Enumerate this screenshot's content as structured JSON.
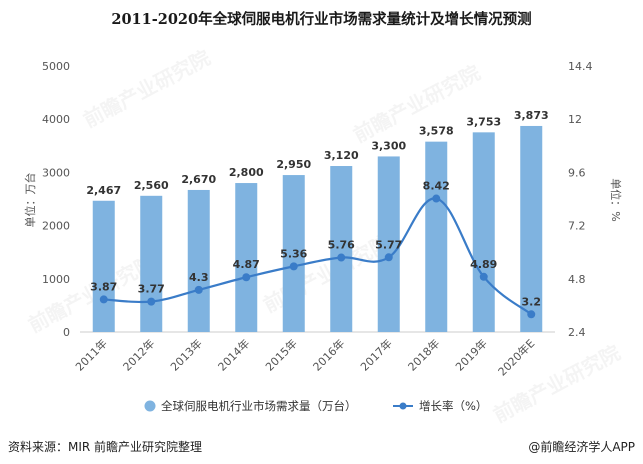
{
  "title": "2011-2020年全球伺服电机行业市场需求量统计及增长情况预测",
  "source": "资料来源：MIR 前瞻产业研究院整理",
  "brand": "@前瞻经济学人APP",
  "watermark": "前瞻产业研究院",
  "colors": {
    "bar": "#7fb3e0",
    "line": "#3a7cc8"
  },
  "chart_data": {
    "type": "bar",
    "categories": [
      "2011年",
      "2012年",
      "2013年",
      "2014年",
      "2015年",
      "2016年",
      "2017年",
      "2018年",
      "2019年",
      "2020年E"
    ],
    "series": [
      {
        "name": "全球伺服电机行业市场需求量（万台）",
        "type": "bar",
        "axis": "left",
        "values": [
          2467,
          2560,
          2670,
          2800,
          2950,
          3120,
          3300,
          3578,
          3753,
          3873
        ],
        "labels": [
          "2,467",
          "2,560",
          "2,670",
          "2,800",
          "2,950",
          "3,120",
          "3,300",
          "3,578",
          "3,753",
          "3,873"
        ]
      },
      {
        "name": "增长率（%）",
        "type": "line",
        "axis": "right",
        "values": [
          3.87,
          3.77,
          4.3,
          4.87,
          5.36,
          5.76,
          5.77,
          8.42,
          4.89,
          3.2
        ],
        "labels": [
          "3.87",
          "3.77",
          "4.3",
          "4.87",
          "5.36",
          "5.76",
          "5.77",
          "8.42",
          "4.89",
          "3.2"
        ]
      }
    ],
    "y_left": {
      "label": "单位：万台",
      "ylim": [
        0,
        5000
      ],
      "ticks": [
        0,
        1000,
        2000,
        3000,
        4000,
        5000
      ],
      "tick_labels": [
        "0",
        "1000",
        "2000",
        "3000",
        "4000",
        "5000"
      ]
    },
    "y_right": {
      "label": "单位：%",
      "ylim": [
        2.4,
        14.4
      ],
      "ticks": [
        2.4,
        4.8,
        7.2,
        9.6,
        12,
        14.4
      ],
      "tick_labels": [
        "2.4",
        "4.8",
        "7.2",
        "9.6",
        "12",
        "14.4"
      ]
    },
    "legend_position": "bottom",
    "grid": false
  }
}
